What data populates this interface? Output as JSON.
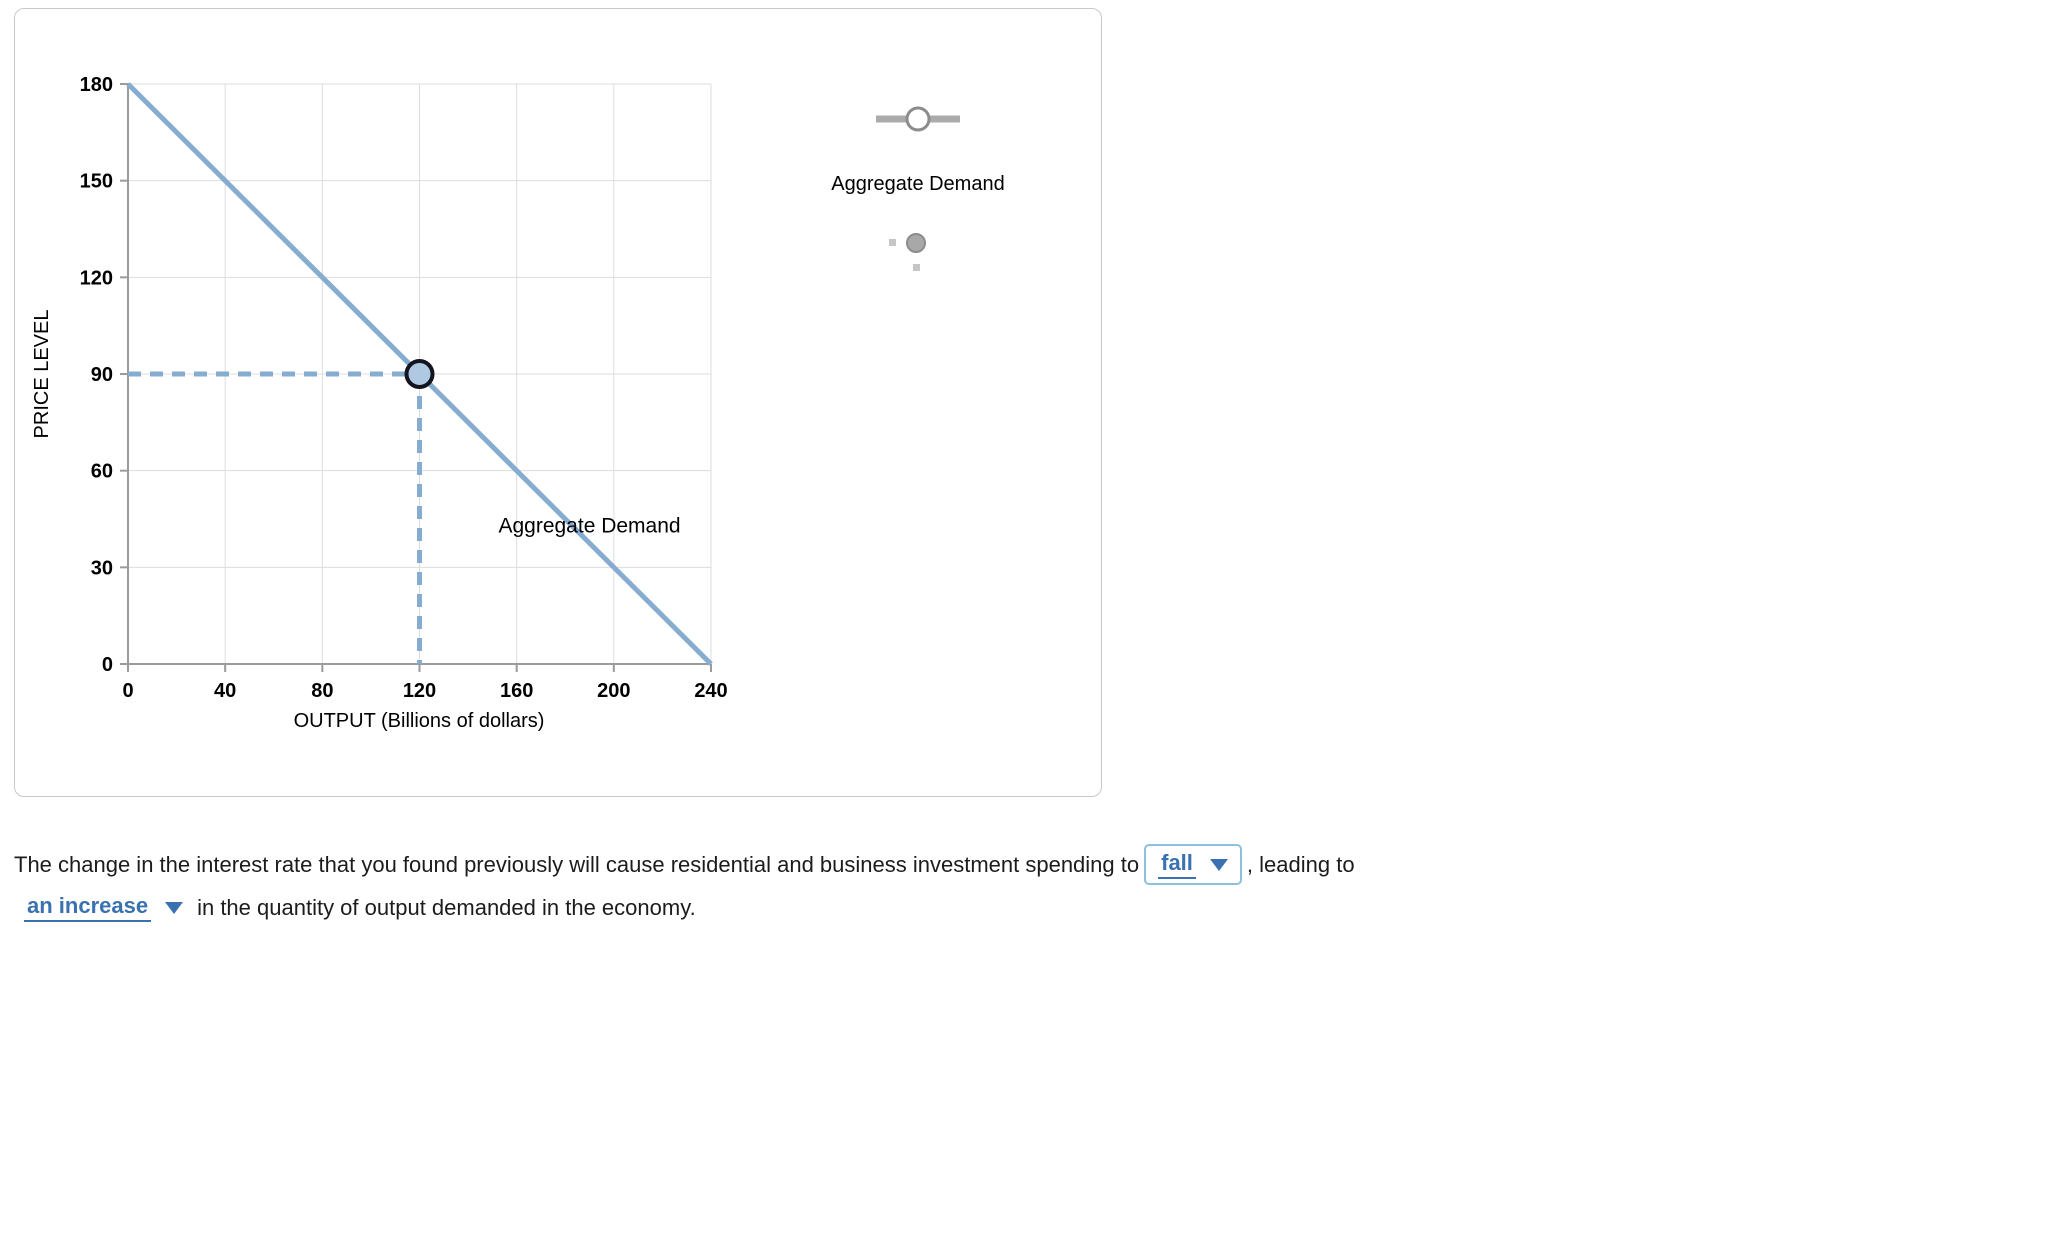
{
  "colors": {
    "ad_line": "#86ACD0",
    "point_fill": "#AFC9E3",
    "point_stroke": "#15151F",
    "grid": "#DDDDDD",
    "axis": "#9B9B9B",
    "dropdown_text": "#3A71B0",
    "dropdown_border": "#8FBFDF",
    "tool_gray": "#ABABAB",
    "tool_dark": "#8C8C8C",
    "tool_fill": "#A8A8A8",
    "tool_sq": "#C6C6C6"
  },
  "chart_data": {
    "type": "line",
    "title": "",
    "xlabel": "OUTPUT (Billions of dollars)",
    "ylabel": "PRICE LEVEL",
    "xlim": [
      0,
      240
    ],
    "ylim": [
      0,
      180
    ],
    "xticks": [
      0,
      40,
      80,
      120,
      160,
      200,
      240
    ],
    "yticks": [
      0,
      30,
      60,
      90,
      120,
      150,
      180
    ],
    "grid": true,
    "legend_position": "none",
    "series": [
      {
        "name": "Aggregate Demand",
        "x": [
          0,
          240
        ],
        "y": [
          180,
          0
        ],
        "label": "Aggregate Demand",
        "label_at": {
          "x": 190,
          "y": 43
        }
      }
    ],
    "point": {
      "x": 120,
      "y": 90
    },
    "dashed_guides": [
      {
        "from": [
          0,
          90
        ],
        "to": [
          120,
          90
        ]
      },
      {
        "from": [
          120,
          90
        ],
        "to": [
          120,
          0
        ]
      }
    ]
  },
  "palette": {
    "line_tool_label": "Aggregate Demand"
  },
  "question": {
    "text_part1": "The change in the interest rate that you found previously will cause residential and business investment spending to",
    "dropdown1_value": "fall",
    "text_part2": ", leading to",
    "dropdown2_value": "an increase",
    "text_part3": "in the quantity of output demanded in the economy."
  }
}
